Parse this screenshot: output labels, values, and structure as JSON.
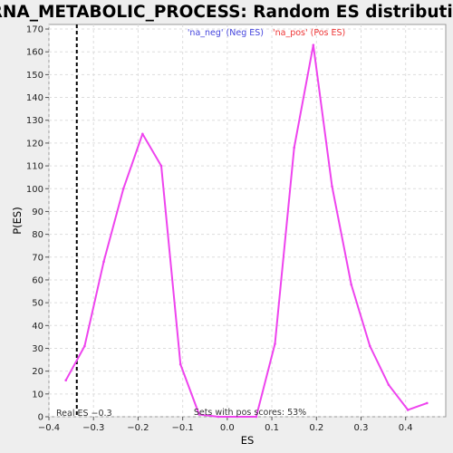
{
  "chart_data": {
    "type": "line",
    "title": "RRNA_METABOLIC_PROCESS: Random ES distribution",
    "xlabel": "ES",
    "ylabel": "P(ES)",
    "xlim": [
      -0.4,
      0.49
    ],
    "ylim": [
      0,
      172
    ],
    "x_ticks": [
      -0.4,
      -0.3,
      -0.2,
      -0.1,
      0.0,
      0.1,
      0.2,
      0.3,
      0.4
    ],
    "x_tick_labels": [
      "−0.4",
      "−0.3",
      "−0.2",
      "−0.1",
      "0.0",
      "0.1",
      "0.2",
      "0.3",
      "0.4"
    ],
    "y_ticks": [
      0,
      10,
      20,
      30,
      40,
      50,
      60,
      70,
      80,
      90,
      100,
      110,
      120,
      130,
      140,
      150,
      160,
      170
    ],
    "grid": true,
    "legend": {
      "placement": "top-center",
      "neg_label": "'na_neg' (Neg ES)",
      "pos_label": "'na_pos' (Pos ES)"
    },
    "series": [
      {
        "color": "#ee44ee",
        "x": [
          -0.362,
          -0.32,
          -0.277,
          -0.233,
          -0.19,
          -0.148,
          -0.105,
          -0.063,
          -0.02,
          0.022,
          0.065,
          0.107,
          0.15,
          0.193,
          0.235,
          0.278,
          0.32,
          0.362,
          0.405,
          0.448
        ],
        "y": [
          16,
          31,
          68,
          100,
          124,
          110,
          23,
          1,
          0,
          0,
          0,
          32,
          118,
          163,
          101,
          58,
          31,
          14,
          3,
          6
        ]
      }
    ],
    "real_es": {
      "value": -0.3375,
      "label": "Real ES −0.3"
    },
    "footnote": "Sets with pos scores: 53%"
  },
  "colors": {
    "line": "#ee44ee",
    "real_es_line": "#000000",
    "grid": "#dddddd",
    "background": "#ffffff"
  }
}
